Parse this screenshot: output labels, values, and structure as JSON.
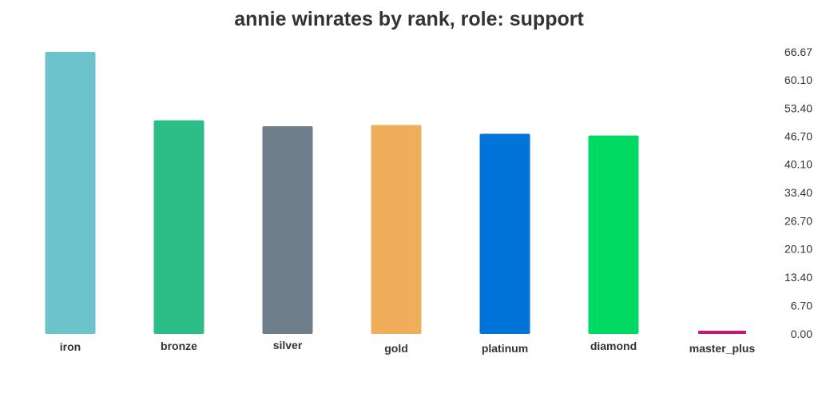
{
  "chart_data": {
    "type": "bar",
    "title": "annie winrates by rank, role: support",
    "xlabel": "",
    "ylabel": "",
    "categories": [
      "iron",
      "bronze",
      "silver",
      "gold",
      "platinum",
      "diamond",
      "master_plus"
    ],
    "values": [
      66.67,
      50.5,
      49.1,
      49.4,
      47.3,
      46.9,
      0
    ],
    "colors": [
      "#6cc3cb",
      "#2bbf87",
      "#6e7f8b",
      "#f0ae5b",
      "#0074d9",
      "#01d965",
      "#c2157a"
    ],
    "ylim": [
      0,
      66.67
    ],
    "yticks": [
      "0.00",
      "6.70",
      "13.40",
      "20.10",
      "26.70",
      "33.40",
      "40.10",
      "46.70",
      "53.40",
      "60.10",
      "66.67"
    ],
    "ytick_values": [
      0,
      6.7,
      13.4,
      20.1,
      26.7,
      33.4,
      40.1,
      46.7,
      53.4,
      60.1,
      66.67
    ],
    "y_axis_side": "right",
    "grid": false,
    "legend": "none"
  }
}
